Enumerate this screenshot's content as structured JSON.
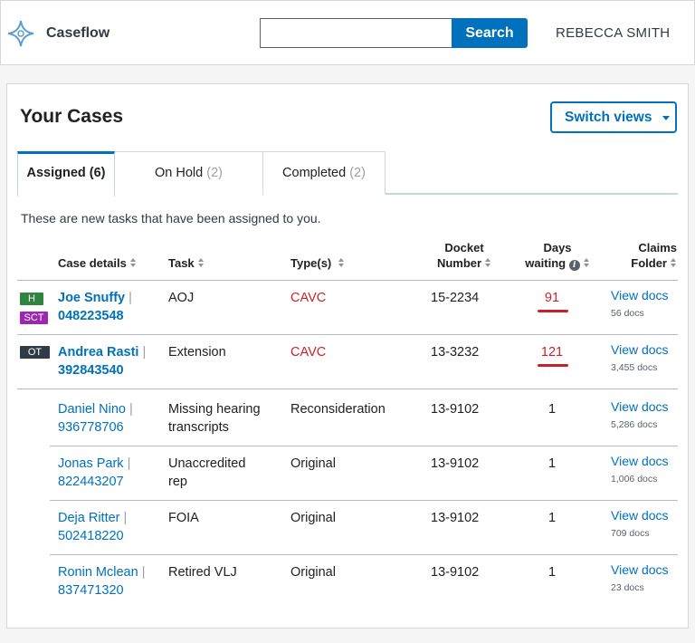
{
  "header": {
    "app_name": "Caseflow",
    "search_button": "Search",
    "search_value": "",
    "user": "REBECCA SMITH"
  },
  "page": {
    "title": "Your Cases",
    "switch_views": "Switch views",
    "tabs": [
      {
        "label": "Assigned",
        "count": "(6)"
      },
      {
        "label": "On Hold",
        "count": "(2)"
      },
      {
        "label": "Completed",
        "count": "(2)"
      }
    ],
    "description": "These are new tasks that have been assigned to you."
  },
  "table": {
    "headers": {
      "case_details": "Case details",
      "task": "Task",
      "types": "Type(s)",
      "docket_line1": "Docket",
      "docket_line2": "Number",
      "days_line1": "Days",
      "days_line2": "waiting",
      "claims_line1": "Claims",
      "claims_line2": "Folder"
    },
    "rows": [
      {
        "badges": [
          "H",
          "SCT"
        ],
        "name": "Joe Snuffy",
        "file": "048223548",
        "task": "AOJ",
        "type": "CAVC",
        "docket": "15-2234",
        "days": "91",
        "view": "View docs",
        "docs": "56 docs"
      },
      {
        "badges": [
          "OT"
        ],
        "name": "Andrea Rasti",
        "file": "392843540",
        "task": "Extension",
        "type": "CAVC",
        "docket": "13-3232",
        "days": "121",
        "view": "View docs",
        "docs": "3,455 docs"
      },
      {
        "badges": [],
        "name": "Daniel Nino",
        "file": "936778706",
        "task_l1": "Missing hearing",
        "task_l2": "transcripts",
        "type": "Reconsideration",
        "docket": "13-9102",
        "days": "1",
        "view": "View docs",
        "docs": "5,286 docs"
      },
      {
        "badges": [],
        "name": "Jonas Park",
        "file": "822443207",
        "task_l1": "Unaccredited",
        "task_l2": "rep",
        "type": "Original",
        "docket": "13-9102",
        "days": "1",
        "view": "View docs",
        "docs": "1,006 docs"
      },
      {
        "badges": [],
        "name": "Deja Ritter",
        "file": "502418220",
        "task": "FOIA",
        "type": "Original",
        "docket": "13-9102",
        "days": "1",
        "view": "View docs",
        "docs": "709 docs"
      },
      {
        "badges": [],
        "name": "Ronin Mclean",
        "file": "837471320",
        "task": "Retired VLJ",
        "type": "Original",
        "docket": "13-9102",
        "days": "1",
        "view": "View docs",
        "docs": "23 docs"
      }
    ]
  },
  "colors": {
    "primary": "#0071bc",
    "alert": "#cd2026",
    "badge_h": "#2e8540",
    "badge_sct": "#9c27b0",
    "badge_ot": "#323a45"
  }
}
